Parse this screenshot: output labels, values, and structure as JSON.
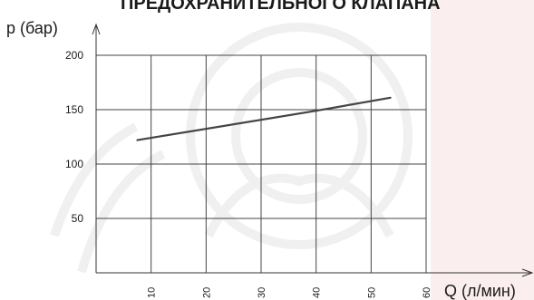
{
  "colors": {
    "background": "#ffffff",
    "right_panel": "#fbeeee",
    "watermark": "#f2f2f2",
    "axis": "#333333",
    "grid": "#444444",
    "line": "#444444",
    "text": "#1a1a1a"
  },
  "icons": [
    "watermark-emblem"
  ],
  "chart_data": {
    "type": "line",
    "title": "ПРЕДОХРАНИТЕЛЬНОГО КЛАПАНА",
    "xlabel": "Q (л/мин)",
    "ylabel": "р (бар)",
    "xlim": [
      0,
      60
    ],
    "ylim": [
      0,
      200
    ],
    "x_ticks": [
      "10",
      "20",
      "30",
      "40",
      "50",
      "60"
    ],
    "y_ticks": [
      "50",
      "100",
      "150",
      "200"
    ],
    "grid": true,
    "legend": "none",
    "series": [
      {
        "x": [
          7.5,
          40,
          53.5
        ],
        "y": [
          122,
          149,
          161
        ]
      }
    ]
  }
}
